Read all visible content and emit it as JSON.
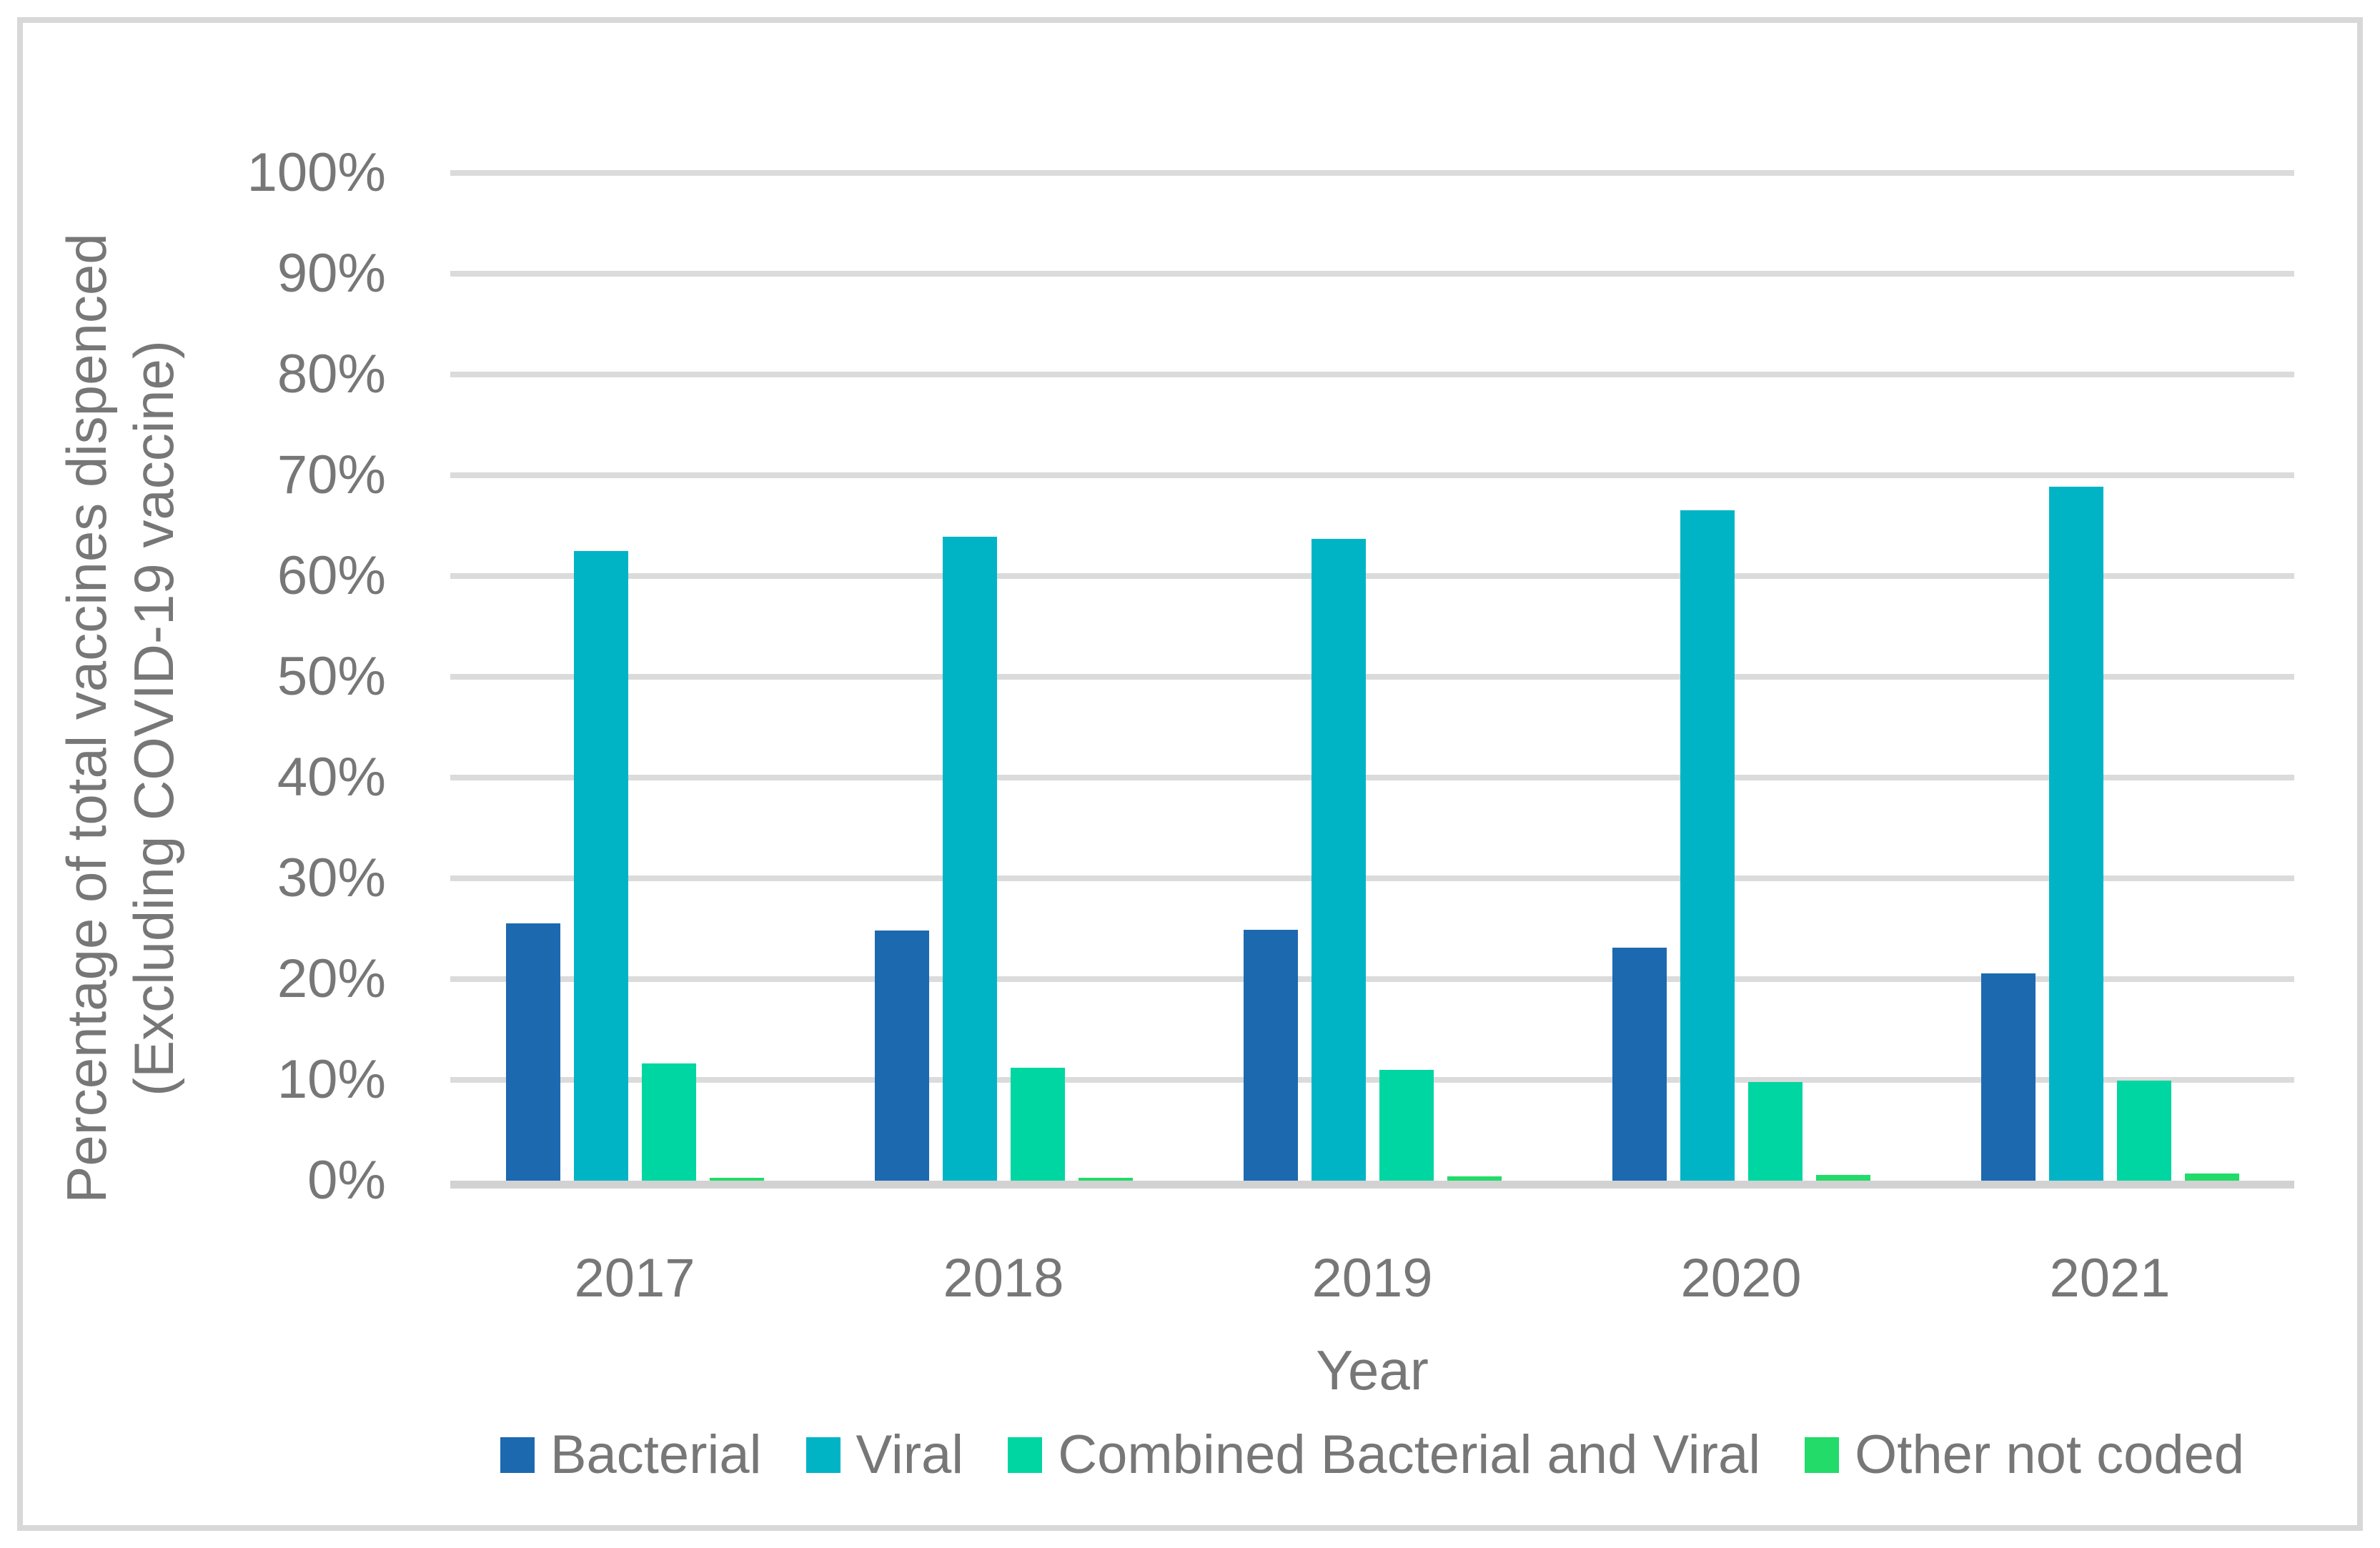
{
  "chart_data": {
    "type": "bar",
    "title": "",
    "categories": [
      "2017",
      "2018",
      "2019",
      "2020",
      "2021"
    ],
    "series": [
      {
        "name": "Bacterial",
        "color": "#1C69B0",
        "values": [
          25.5,
          24.8,
          24.9,
          23.1,
          20.6
        ]
      },
      {
        "name": "Viral",
        "color": "#00B4C6",
        "values": [
          62.5,
          63.9,
          63.7,
          66.5,
          68.9
        ]
      },
      {
        "name": "Combined Bacterial and Viral",
        "color": "#00D6A1",
        "values": [
          11.6,
          11.2,
          11.0,
          9.8,
          9.9
        ]
      },
      {
        "name": "Other not coded",
        "color": "#22DB69",
        "values": [
          0.3,
          0.3,
          0.4,
          0.6,
          0.7
        ]
      }
    ],
    "xlabel": "Year",
    "ylabel_line1": "Percentage of total vaccines dispenced",
    "ylabel_line2": "(Excluding COVID-19 vaccine)",
    "ylim": [
      0,
      100
    ],
    "y_tick_step": 10,
    "y_tick_labels": [
      "0%",
      "10%",
      "20%",
      "30%",
      "40%",
      "50%",
      "60%",
      "70%",
      "80%",
      "90%",
      "100%"
    ],
    "grid": true,
    "legend_position": "bottom",
    "colors": {
      "gridline": "#dbdbdb",
      "axis_line": "#d2d2d2",
      "text": "#777777",
      "frame_border": "#d8d8d8",
      "background": "#ffffff"
    }
  }
}
